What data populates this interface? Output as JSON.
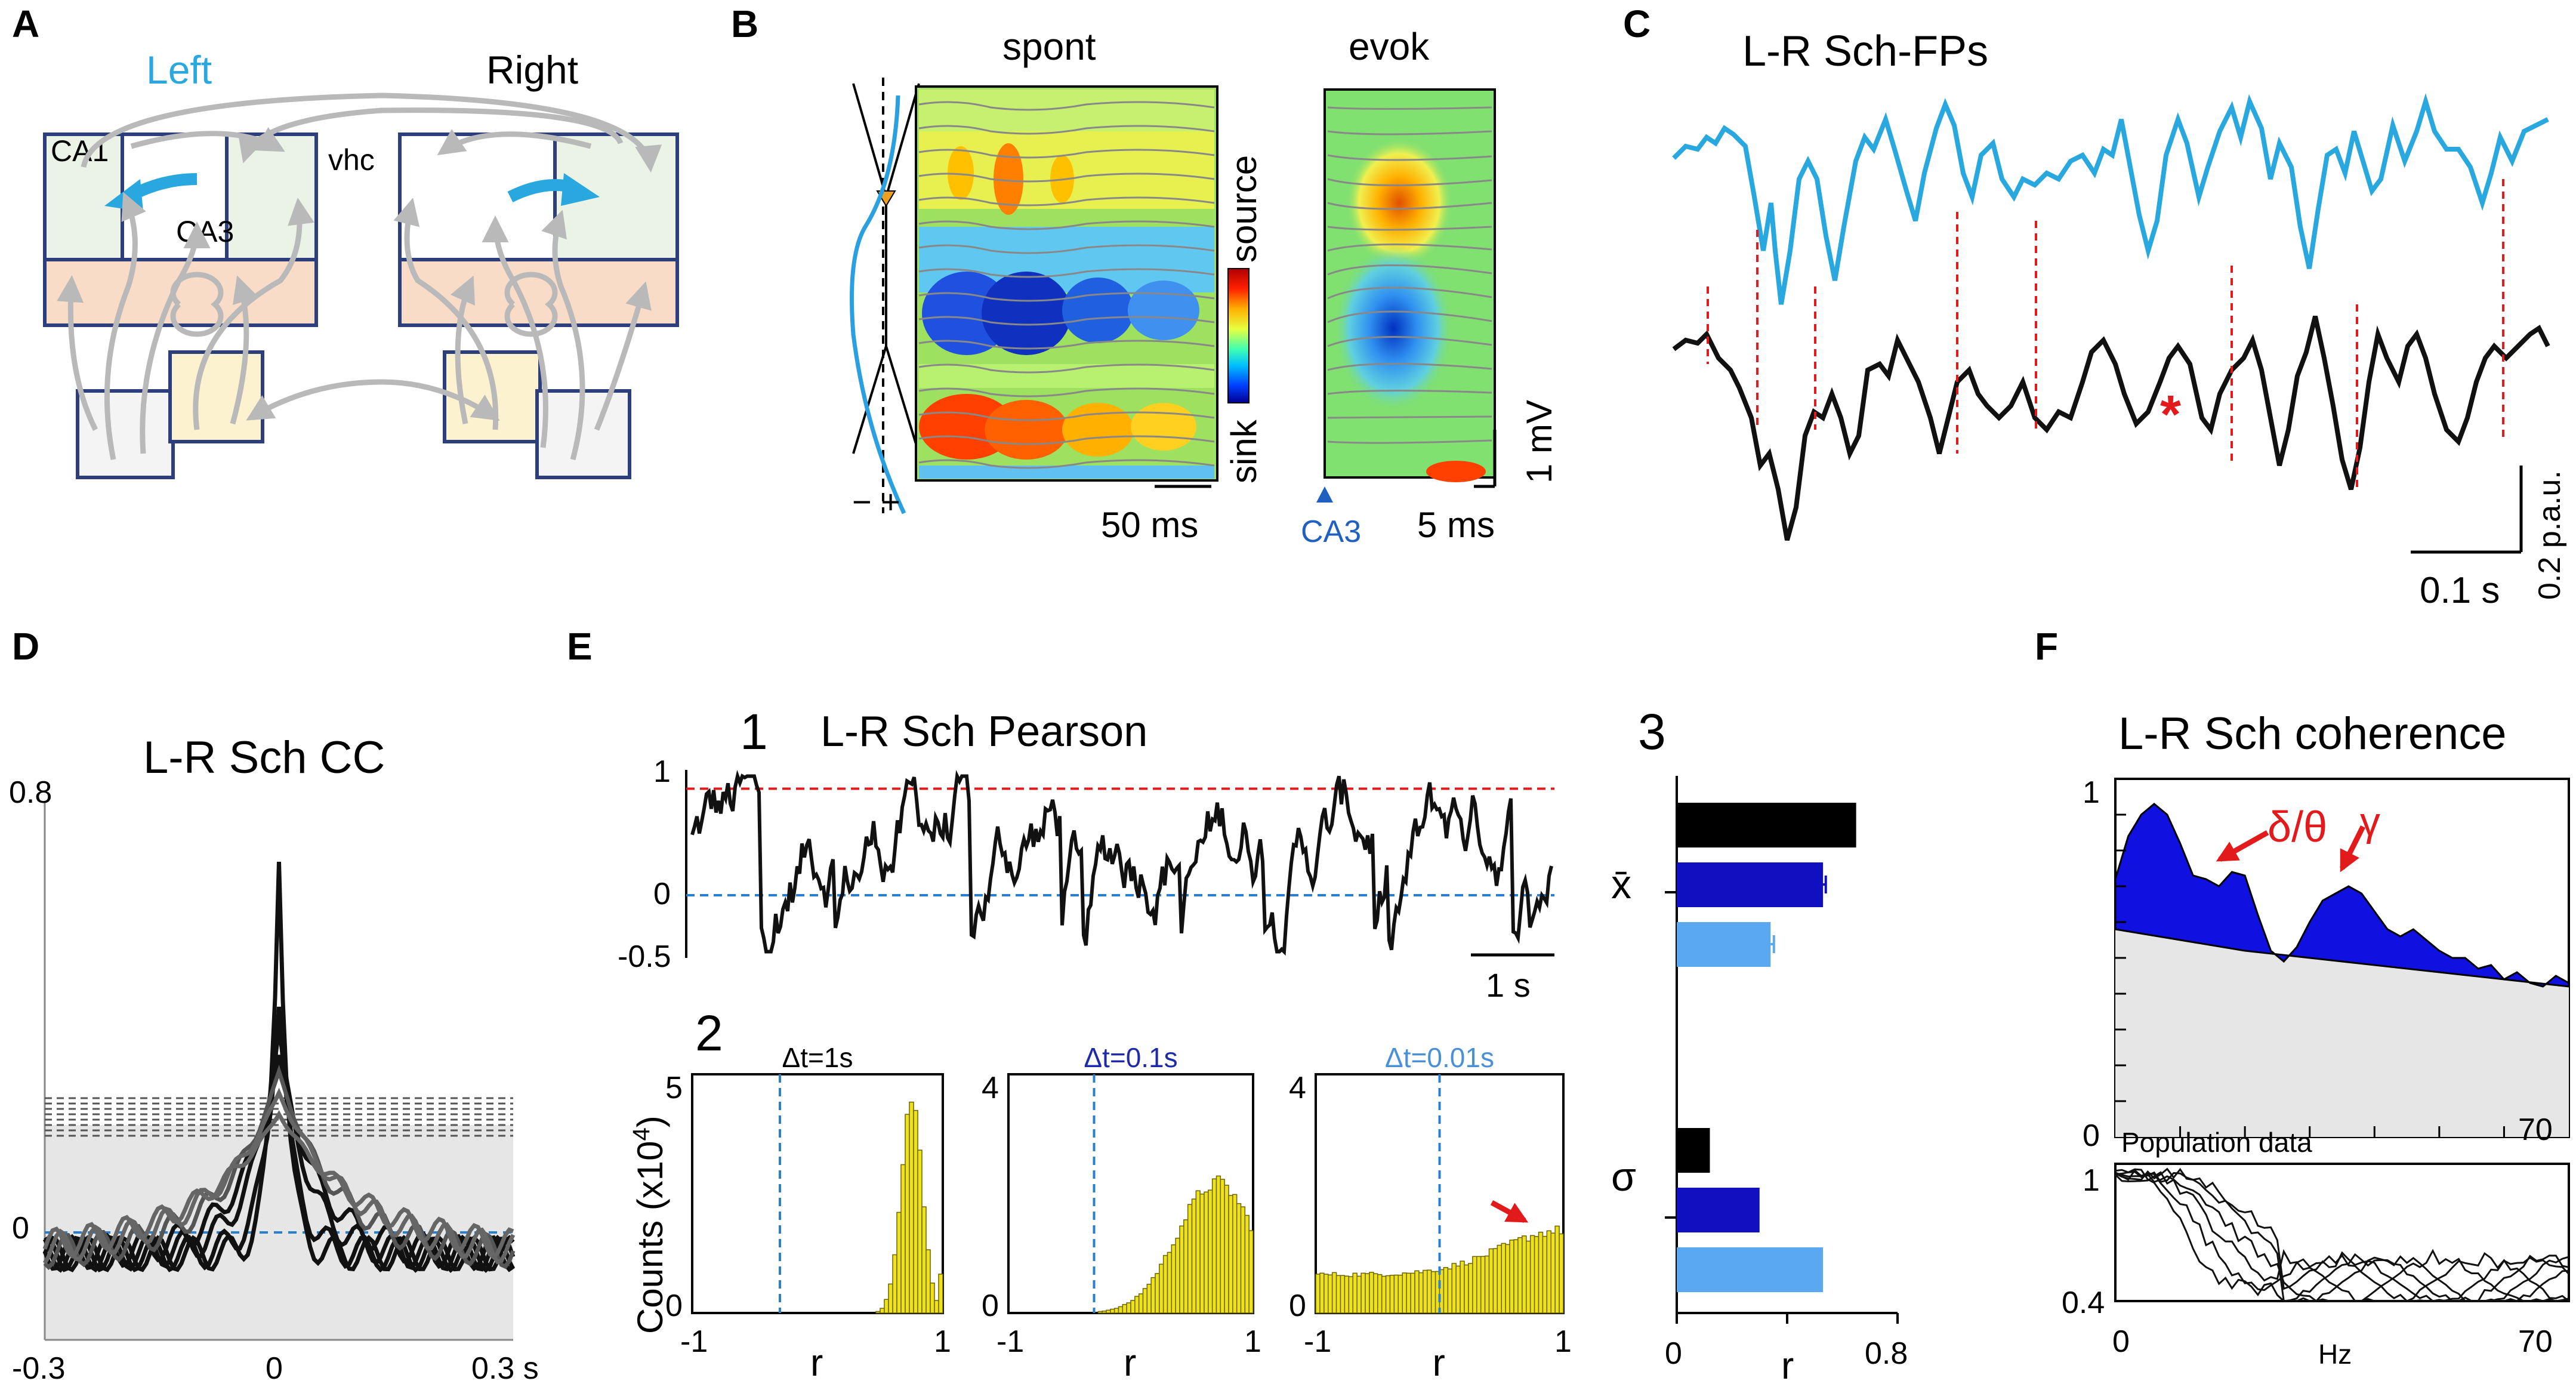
{
  "panels": {
    "A": {
      "label": "A",
      "left": "Left",
      "right": "Right",
      "ca1": "CA1",
      "ca3": "CA3",
      "vhc": "vhc"
    },
    "B": {
      "label": "B",
      "spont": "spont",
      "evok": "evok",
      "source": "source",
      "sink": "sink",
      "minus_plus": "− +",
      "scale_spont": "50 ms",
      "scale_evok": "5 ms",
      "scale_v": "1 mV",
      "stim": "CA3"
    },
    "C": {
      "label": "C",
      "title": "L-R Sch-FPs",
      "star": "*",
      "scale_t": "0.1 s",
      "scale_v": "0.2 p.a.u."
    },
    "D": {
      "label": "D",
      "title": "L-R Sch CC",
      "ytop": "0.8",
      "yzero": "0",
      "xleft": "-0.3",
      "xmid": "0",
      "xright": "0.3 s"
    },
    "E": {
      "label": "E",
      "n1": "1",
      "n2": "2",
      "n3": "3",
      "title1": "L-R Sch Pearson",
      "y1": "1",
      "y0": "0",
      "ym": "-0.5",
      "scale_t": "1 s",
      "counts": "Counts (x10",
      "counts_exp": "4",
      "counts_close": ")",
      "mean_sym": "x̄",
      "sigma_sym": "σ",
      "r": "r",
      "bar_x0": "0",
      "bar_x1": "0.8"
    },
    "F": {
      "label": "F",
      "title": "L-R Sch coherence",
      "delta_theta": "δ/θ",
      "gamma": "γ",
      "y1": "1",
      "y0": "0",
      "x70": "70",
      "pop": "Population data",
      "py1": "1",
      "py04": "0.4",
      "px0": "0",
      "px70": "70",
      "hz": "Hz"
    }
  },
  "chart_data": [
    {
      "id": "D-cross-correlation",
      "type": "line",
      "title": "L-R Sch CC",
      "xlabel": "s",
      "xlim": [
        -0.3,
        0.3
      ],
      "ylim": [
        -0.2,
        0.8
      ],
      "x_ticks": [
        "-0.3",
        "0",
        "0.3 s"
      ],
      "y_ticks": [
        "0.8",
        "0"
      ],
      "series": [
        {
          "name": "cc1",
          "peak": 0.69,
          "width": 0.012,
          "color": "#111111"
        },
        {
          "name": "cc2",
          "peak": 0.42,
          "width": 0.02,
          "color": "#111111"
        },
        {
          "name": "cc3",
          "peak": 0.38,
          "width": 0.035,
          "color": "#111111"
        },
        {
          "name": "cc4",
          "peak": 0.33,
          "width": 0.05,
          "color": "#111111"
        },
        {
          "name": "cc5",
          "peak": 0.3,
          "width": 0.07,
          "color": "#555555"
        },
        {
          "name": "cc6",
          "peak": 0.26,
          "width": 0.09,
          "color": "#666666"
        },
        {
          "name": "cc7",
          "peak": 0.22,
          "width": 0.11,
          "color": "#666666"
        }
      ],
      "significance_lines": [
        0.25,
        0.24,
        0.23,
        0.22,
        0.21,
        0.2,
        0.19,
        0.18
      ],
      "shaded_below": 0.2
    },
    {
      "id": "E2-histograms",
      "type": "bar",
      "xlabel": "r",
      "ylabel": "Counts (x10^4)",
      "xlim": [
        -1,
        1
      ],
      "histograms": [
        {
          "title": "Δt=1s",
          "ymax": 5,
          "color": "#000000",
          "dashed_x": -0.3,
          "mode": 0.75,
          "spread": 0.12,
          "peak": 4.5,
          "floor": 0
        },
        {
          "title": "Δt=0.1s",
          "ymax": 4,
          "color": "#1e2aa8",
          "dashed_x": -0.3,
          "mode": 0.7,
          "spread": 0.45,
          "peak": 2.2,
          "floor": 0
        },
        {
          "title": "Δt=0.01s",
          "ymax": 4,
          "color": "#4a90d9",
          "dashed_x": 0,
          "mode": 1.0,
          "spread": 0.7,
          "peak": 1.4,
          "floor": 0.65
        }
      ]
    },
    {
      "id": "E3-bars",
      "type": "bar",
      "xlabel": "r",
      "xlim": [
        0,
        0.8
      ],
      "groups": [
        {
          "name": "mean",
          "values": [
            0.65,
            0.53,
            0.34
          ],
          "errors": [
            0.0,
            0.01,
            0.012
          ]
        },
        {
          "name": "sigma",
          "values": [
            0.12,
            0.3,
            0.53
          ],
          "errors": [
            0,
            0,
            0
          ]
        }
      ],
      "colors": [
        "#000000",
        "#1010c0",
        "#5aa8f0"
      ]
    },
    {
      "id": "F-coherence",
      "type": "area",
      "title": "L-R Sch coherence",
      "xlabel": "Hz",
      "xlim": [
        0,
        70
      ],
      "ylim": [
        0,
        1
      ],
      "annotations": [
        "δ/θ",
        "γ"
      ],
      "coherence_points": [
        [
          0,
          0.72
        ],
        [
          2,
          0.84
        ],
        [
          4,
          0.9
        ],
        [
          6,
          0.93
        ],
        [
          8,
          0.9
        ],
        [
          10,
          0.82
        ],
        [
          12,
          0.73
        ],
        [
          14,
          0.72
        ],
        [
          16,
          0.7
        ],
        [
          18,
          0.74
        ],
        [
          20,
          0.73
        ],
        [
          22,
          0.62
        ],
        [
          24,
          0.52
        ],
        [
          26,
          0.49
        ],
        [
          28,
          0.53
        ],
        [
          30,
          0.6
        ],
        [
          32,
          0.66
        ],
        [
          34,
          0.68
        ],
        [
          36,
          0.7
        ],
        [
          38,
          0.68
        ],
        [
          40,
          0.63
        ],
        [
          42,
          0.58
        ],
        [
          44,
          0.56
        ],
        [
          46,
          0.58
        ],
        [
          48,
          0.55
        ],
        [
          50,
          0.52
        ],
        [
          52,
          0.5
        ],
        [
          54,
          0.5
        ],
        [
          56,
          0.47
        ],
        [
          58,
          0.48
        ],
        [
          60,
          0.44
        ],
        [
          62,
          0.46
        ],
        [
          64,
          0.43
        ],
        [
          66,
          0.42
        ],
        [
          68,
          0.45
        ],
        [
          70,
          0.43
        ]
      ],
      "significance_points": [
        [
          0,
          0.58
        ],
        [
          10,
          0.55
        ],
        [
          20,
          0.52
        ],
        [
          30,
          0.5
        ],
        [
          40,
          0.48
        ],
        [
          50,
          0.46
        ],
        [
          60,
          0.44
        ],
        [
          70,
          0.42
        ]
      ]
    }
  ]
}
